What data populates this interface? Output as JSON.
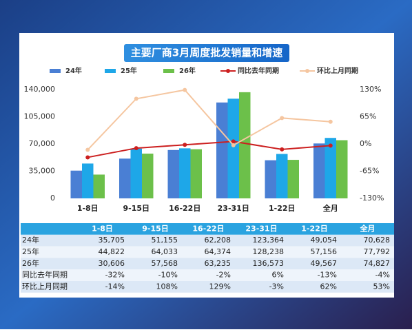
{
  "chart_data": {
    "type": "bar",
    "title": "主要厂商3月周度批发销量和增速",
    "categories": [
      "1-8日",
      "9-15日",
      "16-22日",
      "23-31日",
      "1-22日",
      "全月"
    ],
    "ylim": [
      0,
      140000
    ],
    "yticks": [
      {
        "value": 0,
        "label": "0"
      },
      {
        "value": 35000,
        "label": "35,000"
      },
      {
        "value": 70000,
        "label": "70,000"
      },
      {
        "value": 105000,
        "label": "105,000"
      },
      {
        "value": 140000,
        "label": "140,000"
      }
    ],
    "y2lim": [
      -130,
      130
    ],
    "y2ticks": [
      {
        "value": -130,
        "label": "-130%"
      },
      {
        "value": -65,
        "label": "-65%"
      },
      {
        "value": 0,
        "label": "0%"
      },
      {
        "value": 65,
        "label": "65%"
      },
      {
        "value": 130,
        "label": "130%"
      }
    ],
    "series": [
      {
        "name": "24年",
        "type": "bar",
        "color": "#4a7fd4",
        "values": [
          35705,
          51155,
          62208,
          123364,
          49054,
          70628
        ],
        "value_labels": [
          "35,705",
          "51,155",
          "62,208",
          "123,364",
          "49,054",
          "70,628"
        ]
      },
      {
        "name": "25年",
        "type": "bar",
        "color": "#1ea7e8",
        "values": [
          44822,
          64033,
          64374,
          128238,
          57156,
          77792
        ],
        "value_labels": [
          "44,822",
          "64,033",
          "64,374",
          "128,238",
          "57,156",
          "77,792"
        ]
      },
      {
        "name": "26年",
        "type": "bar",
        "color": "#6cc04a",
        "values": [
          30606,
          57568,
          63235,
          136573,
          49567,
          74827
        ],
        "value_labels": [
          "30,606",
          "57,568",
          "63,235",
          "136,573",
          "49,567",
          "74,827"
        ]
      },
      {
        "name": "同比去年同期",
        "type": "line",
        "axis": "y2",
        "color": "#cc1f1f",
        "values": [
          -32,
          -10,
          -2,
          6,
          -13,
          -4
        ],
        "value_labels": [
          "-32%",
          "-10%",
          "-2%",
          "6%",
          "-13%",
          "-4%"
        ]
      },
      {
        "name": "环比上月同期",
        "type": "line",
        "axis": "y2",
        "color": "#f5c6a0",
        "values": [
          -14,
          108,
          129,
          -3,
          62,
          53
        ],
        "value_labels": [
          "-14%",
          "108%",
          "129%",
          "-3%",
          "62%",
          "53%"
        ]
      }
    ]
  }
}
